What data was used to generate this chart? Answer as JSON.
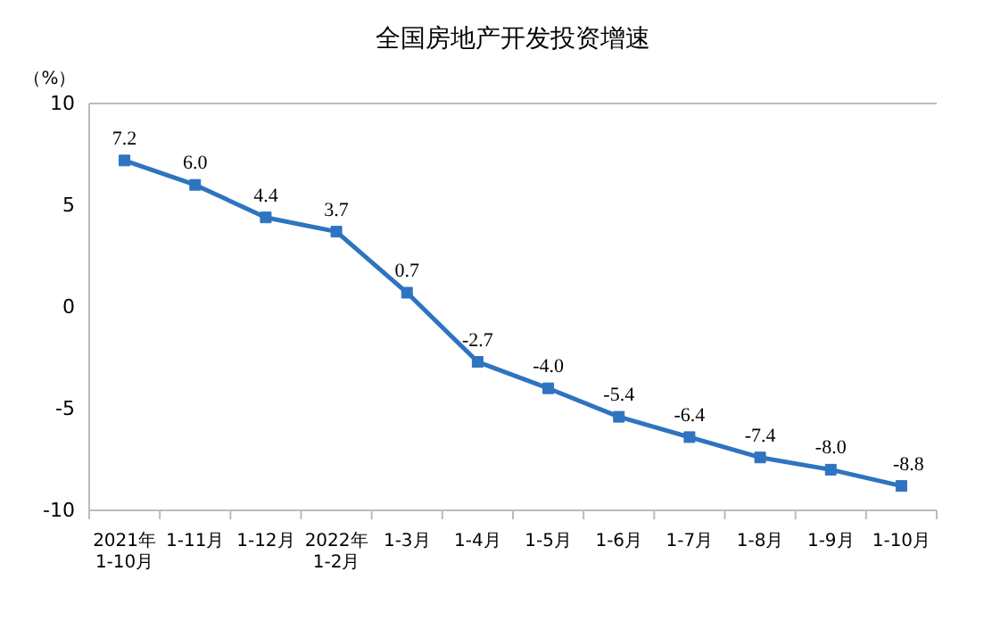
{
  "chart_data": {
    "type": "line",
    "title": "全国房地产开发投资增速",
    "ylabel": "（%）",
    "categories": [
      "2021年\n1-10月",
      "1-11月",
      "1-12月",
      "2022年\n1-2月",
      "1-3月",
      "1-4月",
      "1-5月",
      "1-6月",
      "1-7月",
      "1-8月",
      "1-9月",
      "1-10月"
    ],
    "series": [
      {
        "color": "#2e74c0",
        "values": [
          7.2,
          6.0,
          4.4,
          3.7,
          0.7,
          -2.7,
          -4.0,
          -5.4,
          -6.4,
          -7.4,
          -8.0,
          -8.8
        ],
        "value_labels": [
          "7.2",
          "6.0",
          "4.4",
          "3.7",
          "0.7",
          "-2.7",
          "-4.0",
          "-5.4",
          "-6.4",
          "-7.4",
          "-8.0",
          "-8.8"
        ]
      }
    ],
    "ylim": [
      -10,
      10
    ],
    "yticks": [
      -10,
      -5,
      0,
      5,
      10
    ],
    "marker": "square",
    "line_style": "solid",
    "data_labels": true,
    "grid": false
  }
}
